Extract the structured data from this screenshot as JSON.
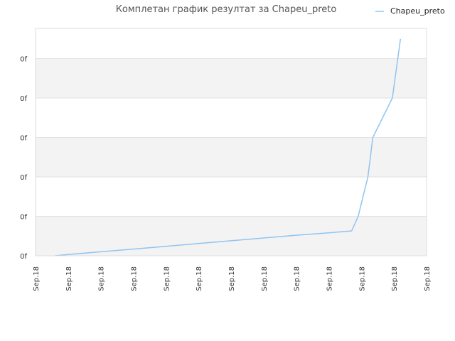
{
  "chart_data": {
    "type": "line",
    "title": "Комплетан график резултат за Chapeu_preto",
    "xlabel": "",
    "ylabel": "",
    "x_tick_labels": [
      "Sep.18",
      "Sep.18",
      "Sep.18",
      "Sep.18",
      "Sep.18",
      "Sep.18",
      "Sep.18",
      "Sep.18",
      "Sep.18",
      "Sep.18",
      "Sep.18",
      "Sep.18",
      "Sep.18"
    ],
    "y_tick_labels": [
      "0f",
      "0f",
      "0f",
      "0f",
      "0f",
      "0f"
    ],
    "ylim": [
      0,
      5
    ],
    "grid": true,
    "legend_position": "top-right",
    "series": [
      {
        "name": "Chapeu_preto",
        "color": "#90c4f0",
        "points": [
          [
            0.6,
            0.0
          ],
          [
            1.0,
            0.03
          ],
          [
            2.0,
            0.1
          ],
          [
            3.0,
            0.17
          ],
          [
            4.0,
            0.24
          ],
          [
            5.0,
            0.31
          ],
          [
            6.0,
            0.38
          ],
          [
            7.0,
            0.45
          ],
          [
            8.0,
            0.52
          ],
          [
            9.0,
            0.58
          ],
          [
            9.7,
            0.63
          ],
          [
            9.9,
            1.0
          ],
          [
            10.2,
            2.0
          ],
          [
            10.35,
            3.0
          ],
          [
            10.95,
            4.0
          ],
          [
            11.2,
            5.5
          ]
        ]
      }
    ]
  }
}
